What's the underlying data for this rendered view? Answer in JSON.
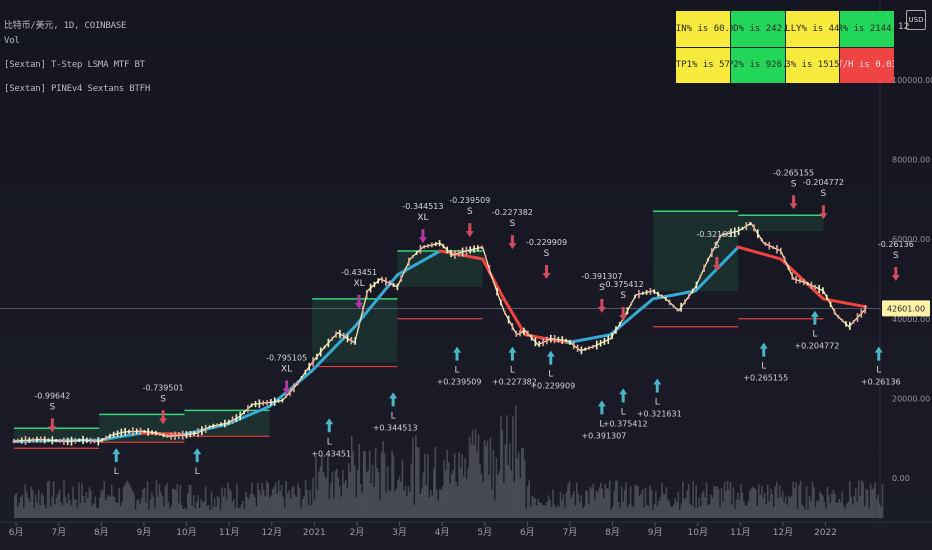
{
  "header": {
    "symbol_line": "比特币/美元, 1D, COINBASE",
    "indicators": [
      "Vol",
      "[Sextan] T-Step LSMA MTF BT",
      "[Sextan] PINEv4 Sextans BTFH"
    ]
  },
  "stats_table": {
    "row1": [
      {
        "text": "WIN% is 60.5",
        "color": "#f7ea3c"
      },
      {
        "text": "ODD% is 242.2",
        "color": "#22d65a"
      },
      {
        "text": "KELLY% is 44.2",
        "color": "#f7ea3c"
      },
      {
        "text": "ER% is 2144.8",
        "color": "#22d65a"
      }
    ],
    "row2": [
      {
        "text": "SL/TP1% is 578.8",
        "color": "#f7ea3c"
      },
      {
        "text": "TP2% is 926.4",
        "color": "#22d65a"
      },
      {
        "text": "TP3% is 1515.2",
        "color": "#f7ea3c"
      },
      {
        "text": "T/H is 0.03",
        "color": "#f04343"
      }
    ]
  },
  "corner": {
    "scale_label": "12",
    "currency": "USD"
  },
  "chart_data": {
    "type": "line",
    "title": "比特币/美元, 1D, COINBASE",
    "yaxis": {
      "ticks": [
        0,
        20000,
        40000,
        60000,
        80000,
        100000
      ],
      "labels": [
        "0.00",
        "20000.00",
        "40000.00",
        "60000.00",
        "80000.00",
        "100000.00"
      ],
      "ylim": [
        -6000,
        115000
      ],
      "position": "right"
    },
    "xaxis": {
      "labels": [
        "6月",
        "7月",
        "8月",
        "9月",
        "10月",
        "11月",
        "12月",
        "2021",
        "2月",
        "3月",
        "4月",
        "5月",
        "6月",
        "7月",
        "8月",
        "9月",
        "10月",
        "11月",
        "12月",
        "2022"
      ],
      "xlim": [
        0,
        20
      ]
    },
    "last_price": {
      "value": 42601,
      "label": "42601.00"
    },
    "price": {
      "name": "BTC/USD",
      "points": [
        [
          0,
          9300
        ],
        [
          0.3,
          9500
        ],
        [
          0.6,
          9700
        ],
        [
          1,
          9400
        ],
        [
          1.3,
          9200
        ],
        [
          1.6,
          9600
        ],
        [
          2,
          9200
        ],
        [
          2.3,
          10800
        ],
        [
          2.6,
          11600
        ],
        [
          3,
          11800
        ],
        [
          3.3,
          11400
        ],
        [
          3.6,
          10500
        ],
        [
          4,
          10800
        ],
        [
          4.3,
          11300
        ],
        [
          4.6,
          12900
        ],
        [
          5,
          13800
        ],
        [
          5.3,
          15500
        ],
        [
          5.6,
          18500
        ],
        [
          6,
          19000
        ],
        [
          6.3,
          19500
        ],
        [
          6.6,
          23000
        ],
        [
          7,
          29000
        ],
        [
          7.3,
          33000
        ],
        [
          7.6,
          36500
        ],
        [
          8,
          34000
        ],
        [
          8.3,
          47000
        ],
        [
          8.6,
          50000
        ],
        [
          9,
          48000
        ],
        [
          9.3,
          55000
        ],
        [
          9.6,
          58000
        ],
        [
          10,
          59000
        ],
        [
          10.3,
          56000
        ],
        [
          10.6,
          57000
        ],
        [
          11,
          58000
        ],
        [
          11.2,
          51000
        ],
        [
          11.5,
          42000
        ],
        [
          11.8,
          36000
        ],
        [
          12,
          37000
        ],
        [
          12.3,
          33500
        ],
        [
          12.6,
          35000
        ],
        [
          13,
          34500
        ],
        [
          13.3,
          32000
        ],
        [
          13.6,
          33000
        ],
        [
          14,
          35000
        ],
        [
          14.3,
          40000
        ],
        [
          14.6,
          46000
        ],
        [
          15,
          47000
        ],
        [
          15.3,
          45000
        ],
        [
          15.6,
          42000
        ],
        [
          16,
          48000
        ],
        [
          16.3,
          55000
        ],
        [
          16.6,
          61000
        ],
        [
          17,
          62000
        ],
        [
          17.3,
          64000
        ],
        [
          17.6,
          59000
        ],
        [
          18,
          57000
        ],
        [
          18.3,
          50000
        ],
        [
          18.6,
          49000
        ],
        [
          19,
          47000
        ],
        [
          19.3,
          41000
        ],
        [
          19.6,
          38000
        ],
        [
          20,
          42601
        ]
      ]
    },
    "lsma": {
      "name": "LSMA",
      "points": [
        [
          0,
          9200
        ],
        [
          1,
          9400
        ],
        [
          2,
          9500
        ],
        [
          3,
          11300
        ],
        [
          4,
          11000
        ],
        [
          5,
          13500
        ],
        [
          6,
          18000
        ],
        [
          7,
          27000
        ],
        [
          8,
          38000
        ],
        [
          9,
          51000
        ],
        [
          10,
          57000
        ],
        [
          11,
          55000
        ],
        [
          11.5,
          45000
        ],
        [
          12,
          36000
        ],
        [
          13,
          34000
        ],
        [
          14,
          36000
        ],
        [
          15,
          45000
        ],
        [
          16,
          47000
        ],
        [
          17,
          58000
        ],
        [
          18,
          55000
        ],
        [
          19,
          45000
        ],
        [
          20,
          43000
        ]
      ]
    },
    "step_bands": {
      "tp_levels": [
        [
          0,
          2,
          12500
        ],
        [
          2,
          4,
          16000
        ],
        [
          4,
          6,
          17000
        ],
        [
          7,
          9,
          45000
        ],
        [
          9,
          11,
          57000
        ],
        [
          15,
          17,
          67000
        ],
        [
          17,
          19,
          66000
        ]
      ],
      "sl_levels": [
        [
          0,
          2,
          7500
        ],
        [
          2,
          4,
          9000
        ],
        [
          4,
          6,
          10500
        ],
        [
          7,
          9,
          28000
        ],
        [
          9,
          11,
          40000
        ],
        [
          15,
          17,
          38000
        ],
        [
          17,
          19,
          40000
        ]
      ]
    },
    "annotations": [
      {
        "x": 0.9,
        "y": 15500,
        "side": "S",
        "value": "-0.99642",
        "kind": "sell"
      },
      {
        "x": 3.5,
        "y": 17500,
        "side": "S",
        "value": "-0.739501",
        "kind": "sell"
      },
      {
        "x": 6.4,
        "y": 25000,
        "side": "XL",
        "value": "-0.795105",
        "kind": "exit"
      },
      {
        "x": 8.1,
        "y": 46500,
        "side": "XL",
        "value": "-0.43451",
        "kind": "exit"
      },
      {
        "x": 9.6,
        "y": 63000,
        "side": "XL",
        "value": "-0.344513",
        "kind": "exit"
      },
      {
        "x": 10.7,
        "y": 64500,
        "side": "S",
        "value": "-0.239509",
        "kind": "sell"
      },
      {
        "x": 11.7,
        "y": 61500,
        "side": "S",
        "value": "-0.227382",
        "kind": "sell"
      },
      {
        "x": 12.5,
        "y": 54000,
        "side": "S",
        "value": "-0.229909",
        "kind": "sell"
      },
      {
        "x": 13.8,
        "y": 45500,
        "side": "S",
        "value": "-0.391307",
        "kind": "sell"
      },
      {
        "x": 14.3,
        "y": 43500,
        "side": "S",
        "value": "-0.375412",
        "kind": "sell"
      },
      {
        "x": 16.5,
        "y": 56000,
        "side": "S",
        "value": "-0.321631",
        "kind": "sell"
      },
      {
        "x": 18.3,
        "y": 71500,
        "side": "S",
        "value": "-0.265155",
        "kind": "sell"
      },
      {
        "x": 19.0,
        "y": 69000,
        "side": "S",
        "value": "-0.204772",
        "kind": "sell"
      },
      {
        "x": 20.7,
        "y": 53500,
        "side": "S",
        "value": "-0.26136",
        "kind": "sell"
      },
      {
        "x": 2.4,
        "y": 4000,
        "side": "L",
        "value": "",
        "kind": "buy"
      },
      {
        "x": 4.3,
        "y": 4000,
        "side": "L",
        "value": "",
        "kind": "buy"
      },
      {
        "x": 7.4,
        "y": 11500,
        "side": "L",
        "value": "+0.43451",
        "kind": "buy"
      },
      {
        "x": 8.9,
        "y": 18000,
        "side": "L",
        "value": "+0.344513",
        "kind": "buy"
      },
      {
        "x": 10.4,
        "y": 29500,
        "side": "L",
        "value": "+0.239509",
        "kind": "buy"
      },
      {
        "x": 11.7,
        "y": 29500,
        "side": "L",
        "value": "+0.227382",
        "kind": "buy"
      },
      {
        "x": 12.6,
        "y": 28500,
        "side": "L",
        "value": "+0.229909",
        "kind": "buy"
      },
      {
        "x": 13.8,
        "y": 16000,
        "side": "L",
        "value": "+0.391307",
        "kind": "buy"
      },
      {
        "x": 14.3,
        "y": 19000,
        "side": "L",
        "value": "+0.375412",
        "kind": "buy"
      },
      {
        "x": 15.1,
        "y": 21500,
        "side": "L",
        "value": "+0.321631",
        "kind": "buy"
      },
      {
        "x": 17.6,
        "y": 30500,
        "side": "L",
        "value": "+0.265155",
        "kind": "buy"
      },
      {
        "x": 18.8,
        "y": 38500,
        "side": "L",
        "value": "+0.204772",
        "kind": "buy"
      },
      {
        "x": 20.3,
        "y": 29500,
        "side": "L",
        "value": "+0.26136",
        "kind": "buy"
      }
    ],
    "colors": {
      "price": "#f2e7a8",
      "lsma_up": "#37a9d6",
      "stop": "#f0453f",
      "take": "#35d67a",
      "purple": "#b13aa5",
      "volume": "#6b6d78",
      "label": "#d4d5da"
    }
  }
}
